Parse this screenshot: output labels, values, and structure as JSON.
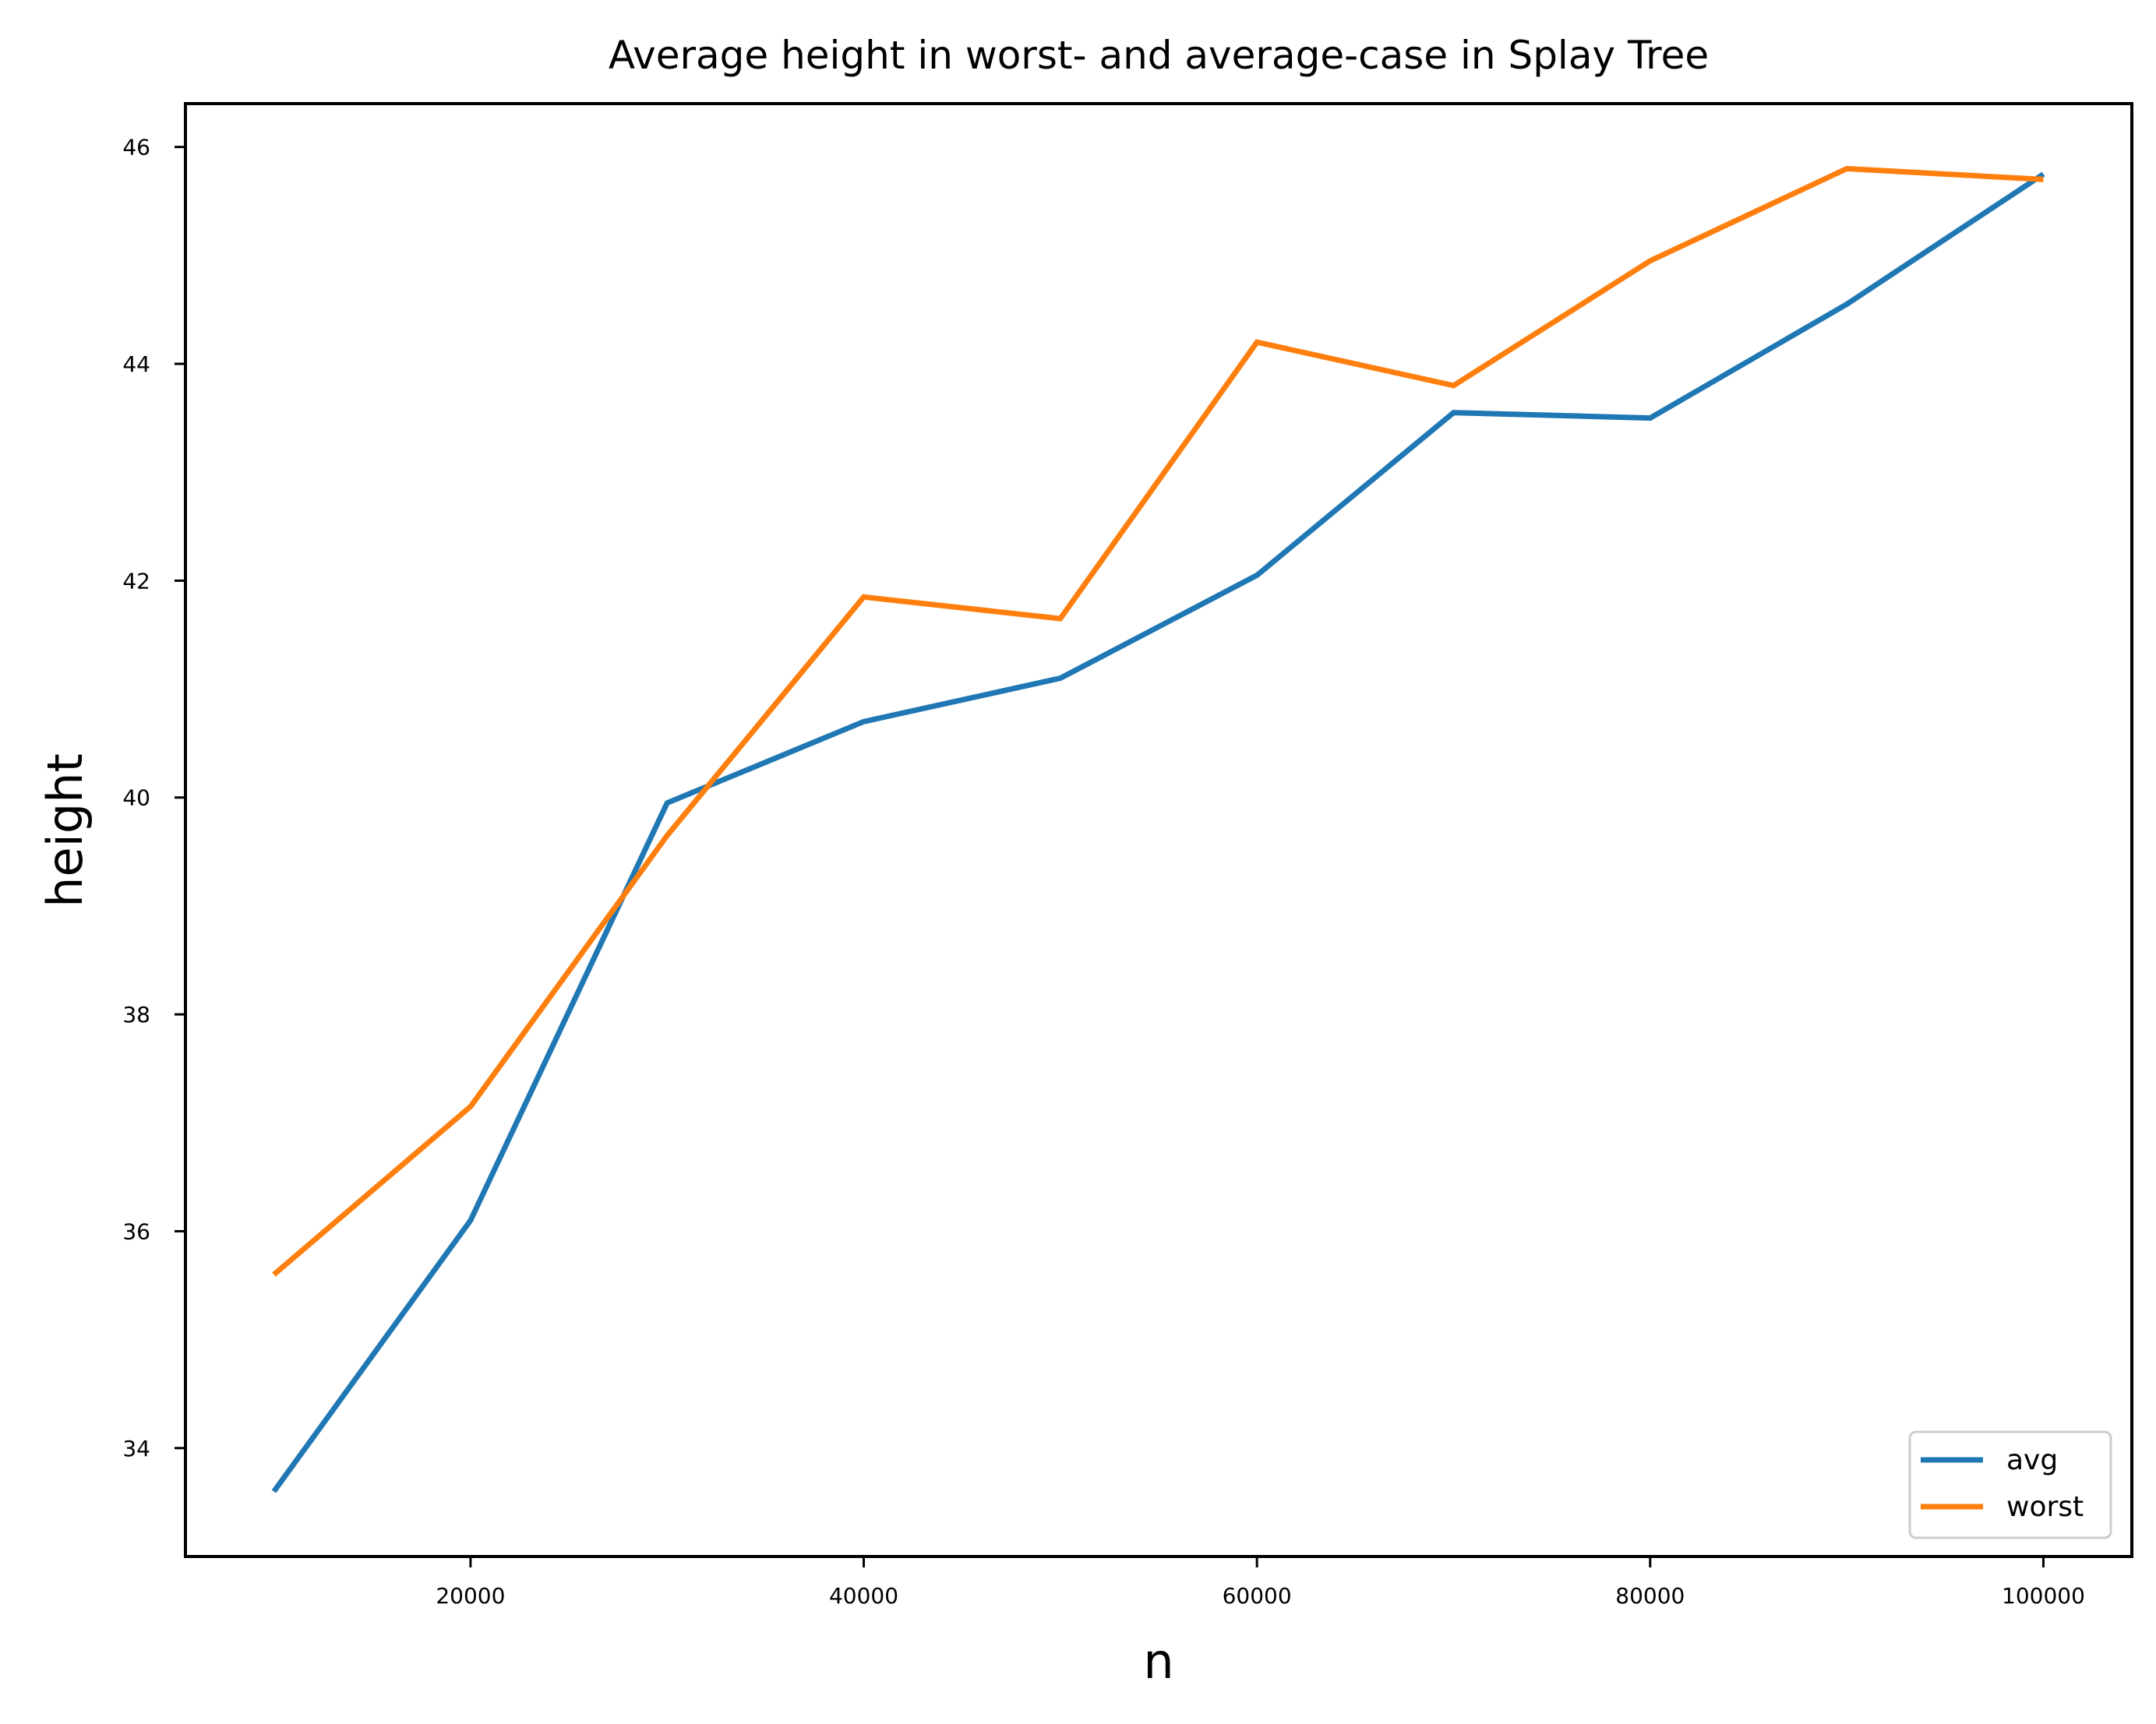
{
  "chart_data": {
    "type": "line",
    "title": "Average height in worst- and average-case in Splay Tree",
    "xlabel": "n",
    "ylabel": "height",
    "x": [
      10000,
      20000,
      30000,
      40000,
      50000,
      60000,
      70000,
      80000,
      90000,
      100000
    ],
    "series": [
      {
        "name": "avg",
        "color": "#1f77b4",
        "values": [
          33.6,
          36.1,
          39.95,
          40.7,
          41.1,
          42.05,
          43.55,
          43.5,
          44.55,
          45.75
        ]
      },
      {
        "name": "worst",
        "color": "#ff7f0e",
        "values": [
          35.6,
          37.15,
          39.65,
          41.85,
          41.65,
          44.2,
          43.8,
          44.95,
          45.8,
          45.7
        ]
      }
    ],
    "xlim": [
      5500,
      104500
    ],
    "ylim": [
      33.0,
      46.4
    ],
    "xticks": [
      20000,
      40000,
      60000,
      80000,
      100000
    ],
    "yticks": [
      34,
      36,
      38,
      40,
      42,
      44,
      46
    ],
    "grid": false,
    "legend_position": "lower-right"
  }
}
